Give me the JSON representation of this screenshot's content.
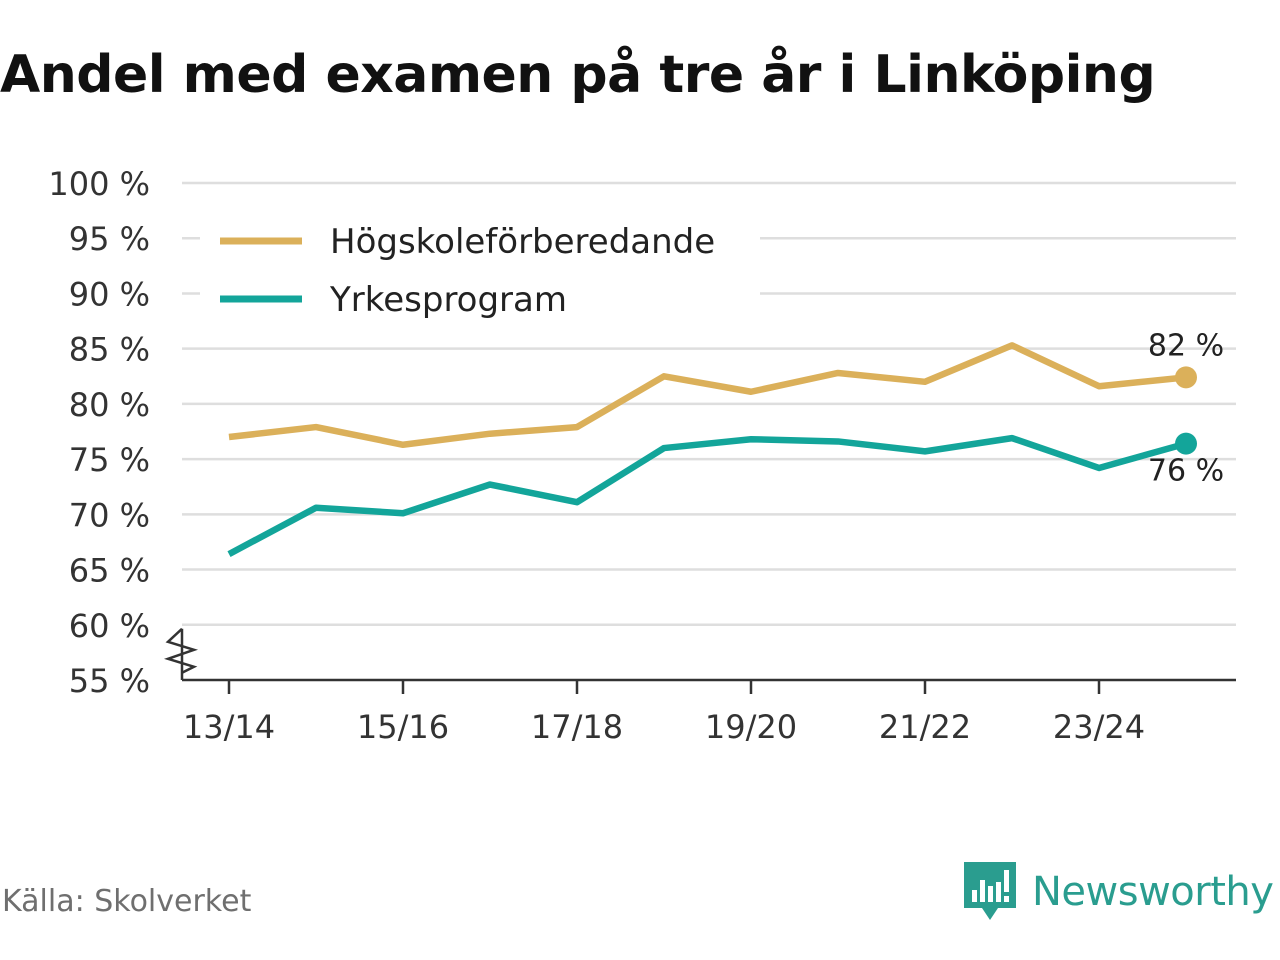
{
  "title": "Andel med examen på tre år i Linköping",
  "source": "Källa: Skolverket",
  "brand": "Newsworthy",
  "chart_data": {
    "type": "line",
    "title": "Andel med examen på tre år i Linköping",
    "xlabel": "",
    "ylabel": "",
    "ylim": [
      55,
      100
    ],
    "y_ticks": [
      55,
      60,
      65,
      70,
      75,
      80,
      85,
      90,
      95,
      100
    ],
    "y_tick_labels": [
      "55 %",
      "60 %",
      "65 %",
      "70 %",
      "75 %",
      "80 %",
      "85 %",
      "90 %",
      "95 %",
      "100 %"
    ],
    "categories": [
      "13/14",
      "14/15",
      "15/16",
      "16/17",
      "17/18",
      "18/19",
      "19/20",
      "20/21",
      "21/22",
      "22/23",
      "23/24",
      "24/25"
    ],
    "x_tick_labels": [
      "13/14",
      "",
      "15/16",
      "",
      "17/18",
      "",
      "19/20",
      "",
      "21/22",
      "",
      "23/24",
      ""
    ],
    "grid": true,
    "axis_break": true,
    "legend_position": "top-left",
    "series": [
      {
        "name": "Högskoleförberedande",
        "color": "#dbb05a",
        "values": [
          77.0,
          77.9,
          76.3,
          77.3,
          77.9,
          82.5,
          81.1,
          82.8,
          82.0,
          85.3,
          81.6,
          82.4
        ],
        "end_label": "82 %"
      },
      {
        "name": "Yrkesprogram",
        "color": "#13a59a",
        "values": [
          66.4,
          70.6,
          70.1,
          72.7,
          71.1,
          76.0,
          76.8,
          76.6,
          75.7,
          76.9,
          74.2,
          76.4
        ],
        "end_label": "76 %"
      }
    ]
  },
  "colors": {
    "grid": "#dedede",
    "axis": "#333333",
    "tick_text": "#333333",
    "title": "#111111",
    "source": "#6f6f6f",
    "brand": "#2a9d8f"
  }
}
